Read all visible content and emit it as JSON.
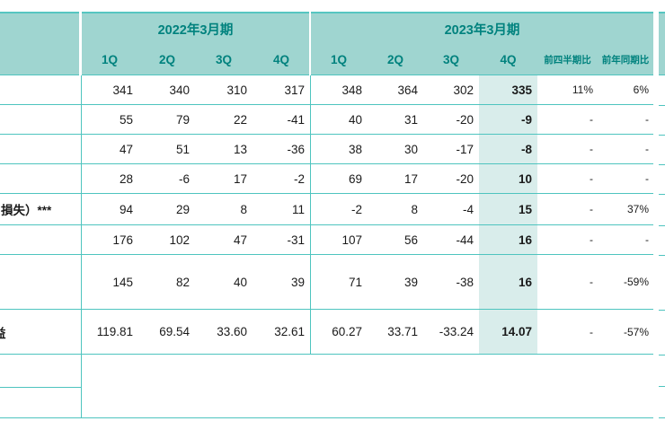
{
  "table": {
    "header": {
      "period_2022": "2022年3月期",
      "period_2023": "2023年3月期",
      "quarters_2022": [
        "1Q",
        "2Q",
        "3Q",
        "4Q"
      ],
      "quarters_2023": [
        "1Q",
        "2Q",
        "3Q",
        "4Q"
      ],
      "ratio_cols": [
        "前四半期比",
        "前年同期比"
      ]
    },
    "rows": [
      {
        "label": "",
        "values": [
          "341",
          "340",
          "310",
          "317",
          "348",
          "364",
          "302",
          "335",
          "11%",
          "6%"
        ]
      },
      {
        "label": "",
        "values": [
          "55",
          "79",
          "22",
          "-41",
          "40",
          "31",
          "-20",
          "-9",
          "-",
          "-"
        ]
      },
      {
        "label": "",
        "values": [
          "47",
          "51",
          "13",
          "-36",
          "38",
          "30",
          "-17",
          "-8",
          "-",
          "-"
        ]
      },
      {
        "label": "",
        "values": [
          "28",
          "-6",
          "17",
          "-2",
          "69",
          "17",
          "-20",
          "10",
          "-",
          "-"
        ]
      },
      {
        "label": "損失）***",
        "values": [
          "94",
          "29",
          "8",
          "11",
          "-2",
          "8",
          "-4",
          "15",
          "-",
          "37%"
        ]
      },
      {
        "label": "",
        "values": [
          "176",
          "102",
          "47",
          "-31",
          "107",
          "56",
          "-44",
          "16",
          "-",
          "-"
        ]
      },
      {
        "label": "",
        "values": [
          "145",
          "82",
          "40",
          "39",
          "71",
          "39",
          "-38",
          "16",
          "-",
          "-59%"
        ]
      },
      {
        "label": "益",
        "values": [
          "119.81",
          "69.54",
          "33.60",
          "32.61",
          "60.27",
          "33.71",
          "-33.24",
          "14.07",
          "-",
          "-57%"
        ]
      }
    ],
    "colors": {
      "header_bg": "#9fd5d0",
      "header_text": "#00827e",
      "grid_line": "#4ec4bf",
      "highlight_column_bg": "#d9edeb"
    },
    "highlighted_column": "2023-4Q"
  }
}
